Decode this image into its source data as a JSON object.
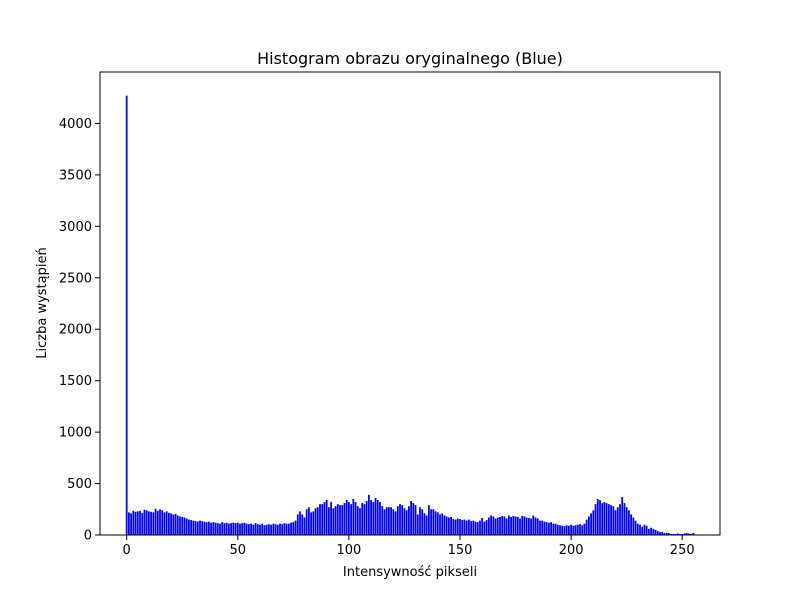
{
  "chart_data": {
    "type": "bar",
    "title": "Histogram obrazu oryginalnego (Blue)",
    "xlabel": "Intensywność pikseli",
    "ylabel": "Liczba wystąpień",
    "xlim": [
      -12,
      267
    ],
    "ylim": [
      0,
      4500
    ],
    "xticks": [
      0,
      50,
      100,
      150,
      200,
      250
    ],
    "yticks": [
      0,
      500,
      1000,
      1500,
      2000,
      2500,
      3000,
      3500,
      4000
    ],
    "grid": false,
    "legend": "none",
    "bar_color": "#0000ff",
    "x": [
      0,
      1,
      2,
      3,
      4,
      5,
      6,
      7,
      8,
      9,
      10,
      11,
      12,
      13,
      14,
      15,
      16,
      17,
      18,
      19,
      20,
      21,
      22,
      23,
      24,
      25,
      26,
      27,
      28,
      29,
      30,
      31,
      32,
      33,
      34,
      35,
      36,
      37,
      38,
      39,
      40,
      41,
      42,
      43,
      44,
      45,
      46,
      47,
      48,
      49,
      50,
      51,
      52,
      53,
      54,
      55,
      56,
      57,
      58,
      59,
      60,
      61,
      62,
      63,
      64,
      65,
      66,
      67,
      68,
      69,
      70,
      71,
      72,
      73,
      74,
      75,
      76,
      77,
      78,
      79,
      80,
      81,
      82,
      83,
      84,
      85,
      86,
      87,
      88,
      89,
      90,
      91,
      92,
      93,
      94,
      95,
      96,
      97,
      98,
      99,
      100,
      101,
      102,
      103,
      104,
      105,
      106,
      107,
      108,
      109,
      110,
      111,
      112,
      113,
      114,
      115,
      116,
      117,
      118,
      119,
      120,
      121,
      122,
      123,
      124,
      125,
      126,
      127,
      128,
      129,
      130,
      131,
      132,
      133,
      134,
      135,
      136,
      137,
      138,
      139,
      140,
      141,
      142,
      143,
      144,
      145,
      146,
      147,
      148,
      149,
      150,
      151,
      152,
      153,
      154,
      155,
      156,
      157,
      158,
      159,
      160,
      161,
      162,
      163,
      164,
      165,
      166,
      167,
      168,
      169,
      170,
      171,
      172,
      173,
      174,
      175,
      176,
      177,
      178,
      179,
      180,
      181,
      182,
      183,
      184,
      185,
      186,
      187,
      188,
      189,
      190,
      191,
      192,
      193,
      194,
      195,
      196,
      197,
      198,
      199,
      200,
      201,
      202,
      203,
      204,
      205,
      206,
      207,
      208,
      209,
      210,
      211,
      212,
      213,
      214,
      215,
      216,
      217,
      218,
      219,
      220,
      221,
      222,
      223,
      224,
      225,
      226,
      227,
      228,
      229,
      230,
      231,
      232,
      233,
      234,
      235,
      236,
      237,
      238,
      239,
      240,
      241,
      242,
      243,
      244,
      245,
      246,
      247,
      248,
      249,
      250,
      251,
      252,
      253,
      254,
      255
    ],
    "values": [
      4270,
      220,
      210,
      235,
      225,
      230,
      235,
      215,
      245,
      240,
      230,
      225,
      220,
      255,
      235,
      250,
      240,
      220,
      230,
      215,
      210,
      200,
      205,
      190,
      180,
      175,
      170,
      160,
      150,
      145,
      140,
      135,
      130,
      140,
      135,
      130,
      125,
      130,
      120,
      125,
      120,
      115,
      110,
      125,
      115,
      120,
      110,
      115,
      120,
      115,
      120,
      110,
      115,
      120,
      110,
      105,
      110,
      100,
      115,
      105,
      100,
      110,
      95,
      100,
      105,
      100,
      110,
      105,
      100,
      110,
      105,
      115,
      110,
      110,
      120,
      125,
      140,
      200,
      230,
      200,
      170,
      250,
      270,
      220,
      230,
      260,
      270,
      300,
      300,
      320,
      340,
      270,
      320,
      260,
      280,
      300,
      290,
      290,
      310,
      340,
      320,
      300,
      350,
      320,
      280,
      260,
      310,
      300,
      330,
      390,
      340,
      320,
      360,
      340,
      320,
      280,
      250,
      270,
      270,
      270,
      250,
      230,
      280,
      300,
      290,
      260,
      240,
      280,
      330,
      310,
      290,
      200,
      270,
      250,
      210,
      190,
      290,
      250,
      250,
      230,
      220,
      200,
      210,
      190,
      180,
      170,
      175,
      155,
      150,
      160,
      155,
      145,
      150,
      140,
      150,
      135,
      140,
      130,
      125,
      140,
      165,
      130,
      145,
      170,
      190,
      180,
      160,
      170,
      175,
      185,
      180,
      160,
      190,
      175,
      185,
      180,
      175,
      160,
      185,
      180,
      170,
      165,
      160,
      190,
      170,
      160,
      140,
      140,
      130,
      125,
      120,
      125,
      110,
      110,
      100,
      95,
      90,
      85,
      95,
      90,
      100,
      90,
      95,
      100,
      105,
      95,
      110,
      150,
      180,
      210,
      240,
      300,
      350,
      340,
      310,
      320,
      310,
      300,
      290,
      280,
      240,
      270,
      300,
      370,
      310,
      270,
      240,
      200,
      170,
      140,
      110,
      100,
      80,
      100,
      90,
      60,
      70,
      60,
      50,
      40,
      30,
      30,
      20,
      20,
      20,
      10,
      10,
      10,
      15,
      10,
      10,
      15,
      20,
      15,
      10,
      20
    ]
  }
}
